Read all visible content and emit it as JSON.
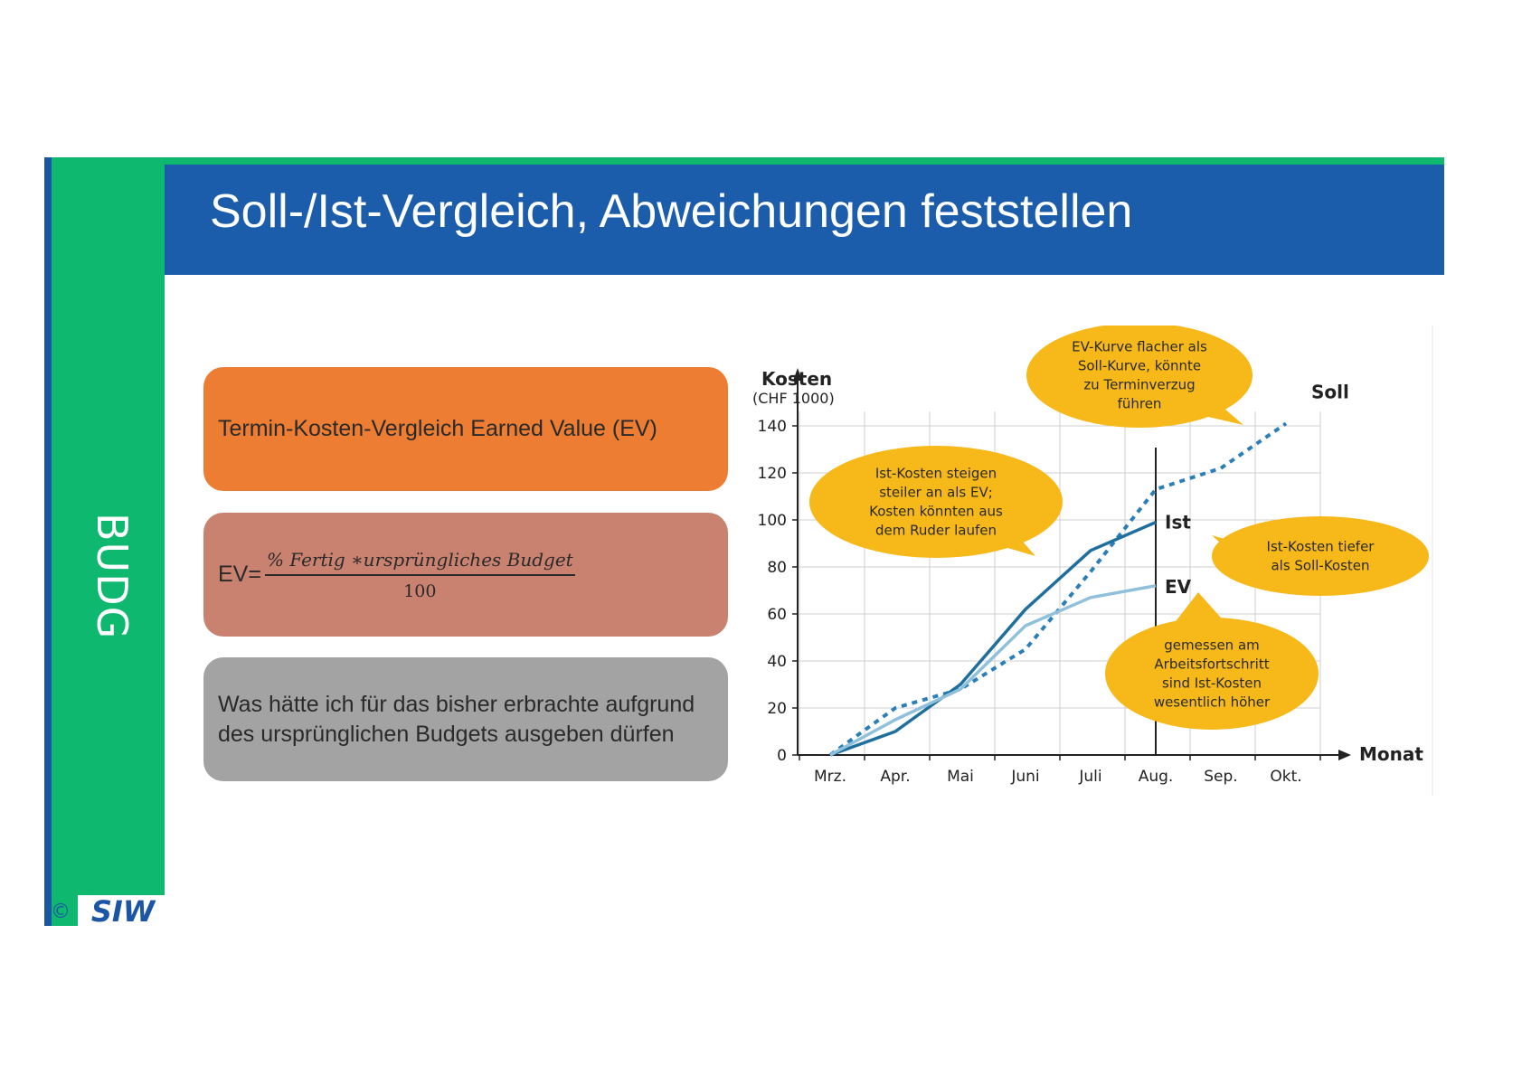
{
  "slide": {
    "title": "Soll-/Ist-Vergleich, Abweichungen feststellen",
    "side_label": "BUDG",
    "copyright": "©",
    "logo_text": "SIW"
  },
  "boxes": {
    "box1_text": "Termin-Kosten-Vergleich Earned Value (EV)",
    "ev_prefix": "EV=",
    "ev_numerator": "% Fertig ∗ursprüngliches Budget",
    "ev_denominator": "100",
    "box3_text": "Was hätte ich für das bisher erbrachte aufgrund des ursprünglichen Budgets ausgeben dürfen"
  },
  "colors": {
    "green": "#0fb86f",
    "blue": "#1b5cab",
    "orange": "#ec7d33",
    "salmon": "#c98170",
    "gray": "#a3a3a3",
    "callout": "#f7b81a",
    "soll": "#2b7fb8",
    "ist": "#1e6f9e",
    "ev": "#8fc0dc"
  },
  "chart_data": {
    "type": "line",
    "ylabel": "Kosten",
    "ylabel_unit": "(CHF 1000)",
    "xlabel": "Monat",
    "ylim": [
      0,
      150
    ],
    "yticks": [
      0,
      20,
      40,
      60,
      80,
      100,
      120,
      140
    ],
    "categories": [
      "Mrz.",
      "Apr.",
      "Mai",
      "Juni",
      "Juli",
      "Aug.",
      "Sep.",
      "Okt."
    ],
    "grid": true,
    "series": [
      {
        "name": "Soll",
        "style": "dashed",
        "x": [
          0,
          1,
          2,
          3,
          4,
          5,
          6,
          7
        ],
        "values": [
          0,
          20,
          28,
          45,
          78,
          113,
          122,
          141
        ]
      },
      {
        "name": "Ist",
        "style": "solid",
        "x": [
          0,
          1,
          2,
          3,
          4,
          5
        ],
        "values": [
          0,
          10,
          30,
          62,
          87,
          99
        ]
      },
      {
        "name": "EV",
        "style": "solid-light",
        "x": [
          0,
          1,
          2,
          3,
          4,
          5
        ],
        "values": [
          0,
          15,
          28,
          55,
          67,
          72
        ]
      }
    ],
    "marker_x": 5,
    "annotations": [
      {
        "id": "soll_ev",
        "text": [
          "EV-Kurve flacher als",
          "Soll-Kurve, könnte",
          "zu Terminverzug",
          "führen"
        ]
      },
      {
        "id": "ist_ev",
        "text": [
          "Ist-Kosten steigen",
          "steiler an als EV;",
          "Kosten könnten aus",
          "dem Ruder laufen"
        ]
      },
      {
        "id": "ist_soll",
        "text": [
          "Ist-Kosten tiefer",
          "als Soll-Kosten"
        ]
      },
      {
        "id": "arbeit",
        "text": [
          "gemessen am",
          "Arbeitsfortschritt",
          "sind Ist-Kosten",
          "wesentlich höher"
        ]
      }
    ]
  }
}
